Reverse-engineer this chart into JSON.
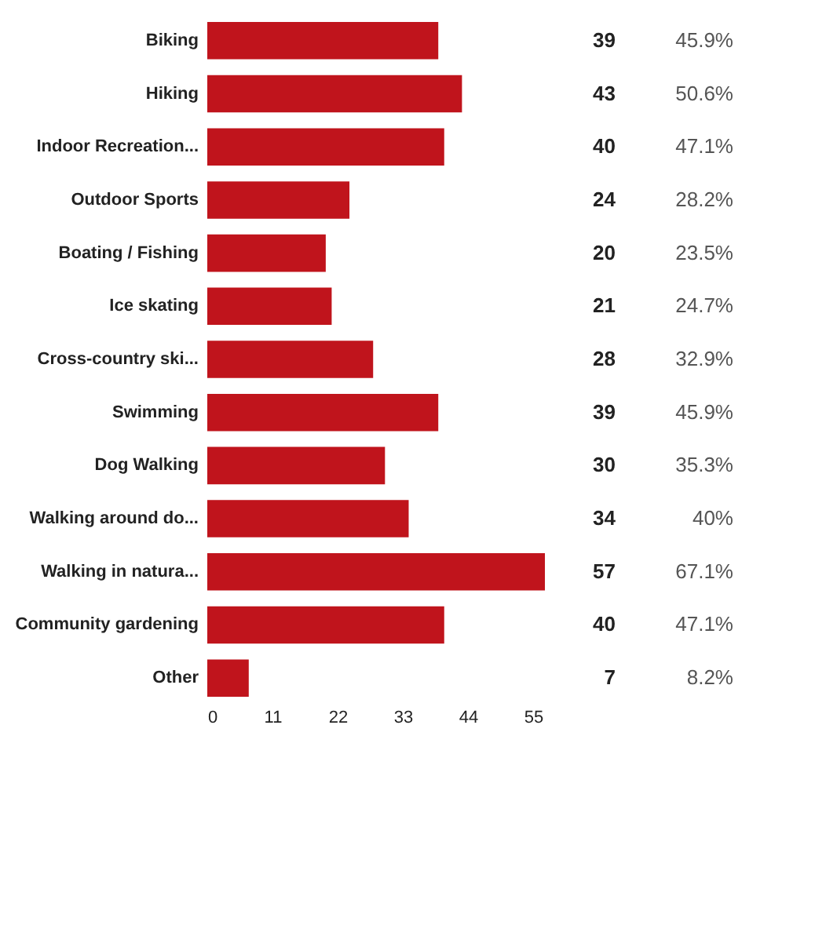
{
  "chart_data": {
    "type": "bar",
    "orientation": "horizontal",
    "categories": [
      "Biking",
      "Hiking",
      "Indoor Recreation...",
      "Outdoor Sports",
      "Boating / Fishing",
      "Ice skating",
      "Cross-country ski...",
      "Swimming",
      "Dog Walking",
      "Walking around do...",
      "Walking in natura...",
      "Community gardening",
      "Other"
    ],
    "values": [
      39,
      43,
      40,
      24,
      20,
      21,
      28,
      39,
      30,
      34,
      57,
      40,
      7
    ],
    "color": "#c0141c",
    "xlim": [
      0,
      57
    ],
    "xticks": [
      0,
      11,
      22,
      33,
      44,
      55
    ],
    "grid": false,
    "data_labels": true,
    "annotations": [
      "45.9%",
      "50.6%",
      "47.1%",
      "28.2%",
      "23.5%",
      "24.7%",
      "32.9%",
      "45.9%",
      "35.3%",
      "40%",
      "67.1%",
      "47.1%",
      "8.2%"
    ]
  }
}
